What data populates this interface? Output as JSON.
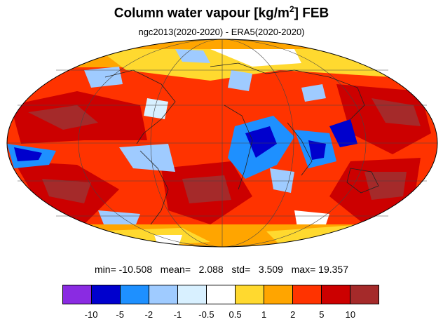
{
  "title": {
    "main": "Column water vapour [kg/m",
    "superscript": "2",
    "suffix": "] FEB"
  },
  "subtitle": "ngc2013(2020-2020) - ERA5(2020-2020)",
  "stats": {
    "min_label": "min=",
    "min_value": "-10.508",
    "mean_label": "mean=",
    "mean_value": "2.088",
    "std_label": "std=",
    "std_value": "3.509",
    "max_label": "max=",
    "max_value": "19.357"
  },
  "colorbar": {
    "colors": [
      "#8a2be2",
      "#0000cd",
      "#1e90ff",
      "#9fcbff",
      "#d8f0ff",
      "#ffffff",
      "#ffd92f",
      "#ffa500",
      "#ff3300",
      "#cc0000",
      "#a52a2a"
    ],
    "labels": [
      "-10",
      "-5",
      "-2",
      "-1",
      "-0.5",
      "0.5",
      "1",
      "2",
      "5",
      "10"
    ]
  },
  "map": {
    "projection": "Mollweide",
    "field": "column water vapour difference",
    "units": "kg/m2"
  }
}
